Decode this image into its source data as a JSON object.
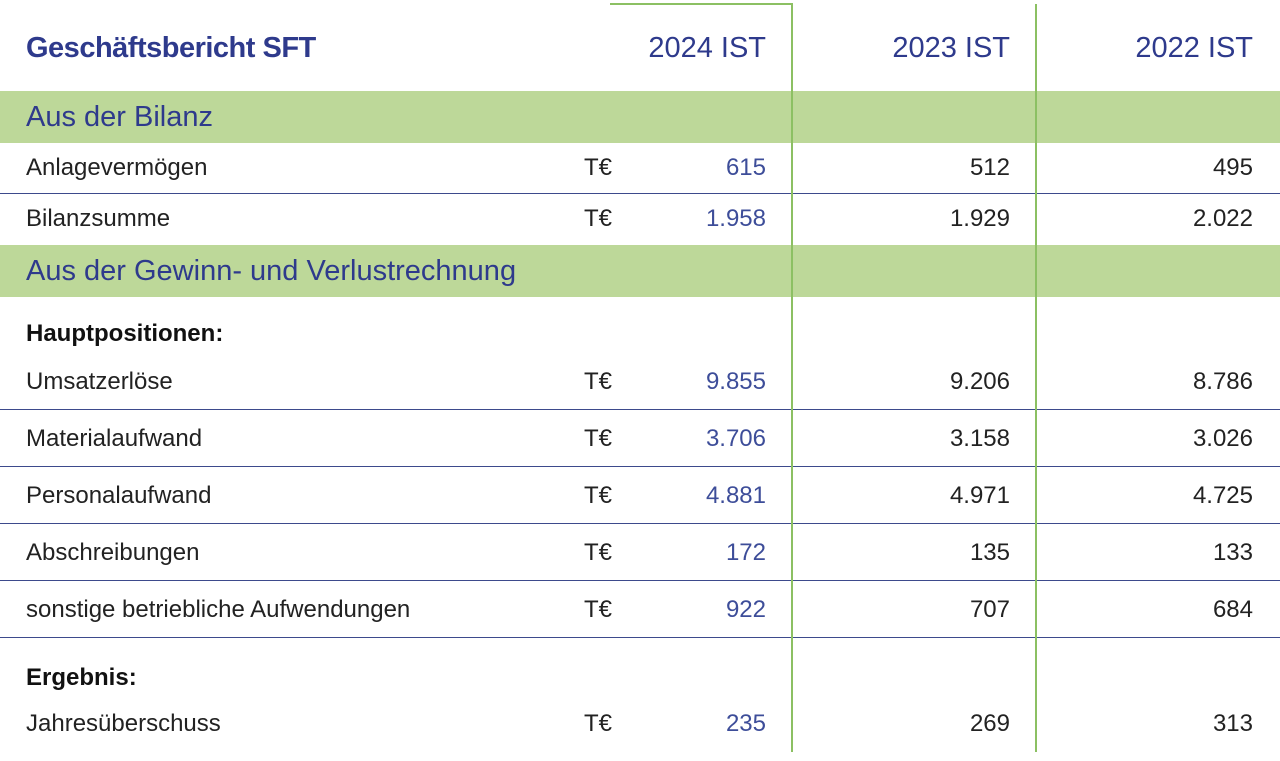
{
  "header": {
    "title": "Geschäftsbericht SFT",
    "years": [
      "2024 IST",
      "2023 IST",
      "2022 IST"
    ]
  },
  "sections": [
    {
      "title": "Aus der Bilanz",
      "rows": [
        {
          "label": "Anlagevermögen",
          "unit": "T€",
          "values": [
            "615",
            "512",
            "495"
          ]
        },
        {
          "label": "Bilanzsumme",
          "unit": "T€",
          "values": [
            "1.958",
            "1.929",
            "2.022"
          ]
        }
      ]
    },
    {
      "title": "Aus der Gewinn- und Verlustrechnung",
      "subheads": [
        "Hauptpositionen:",
        "Ergebnis:"
      ],
      "rows": [
        {
          "label": "Umsatzerlöse",
          "unit": "T€",
          "values": [
            "9.855",
            "9.206",
            "8.786"
          ]
        },
        {
          "label": "Materialaufwand",
          "unit": "T€",
          "values": [
            "3.706",
            "3.158",
            "3.026"
          ]
        },
        {
          "label": "Personalaufwand",
          "unit": "T€",
          "values": [
            "4.881",
            "4.971",
            "4.725"
          ]
        },
        {
          "label": "Abschreibungen",
          "unit": "T€",
          "values": [
            "172",
            "135",
            "133"
          ]
        },
        {
          "label": "sonstige betriebliche Aufwendungen",
          "unit": "T€",
          "values": [
            "922",
            "707",
            "684"
          ]
        },
        {
          "label": "Jahresüberschuss",
          "unit": "T€",
          "values": [
            "235",
            "269",
            "313"
          ]
        }
      ]
    }
  ],
  "colors": {
    "accent_blue": "#2e3a8c",
    "band_green": "#bdd899",
    "line_green": "#8cc063"
  }
}
